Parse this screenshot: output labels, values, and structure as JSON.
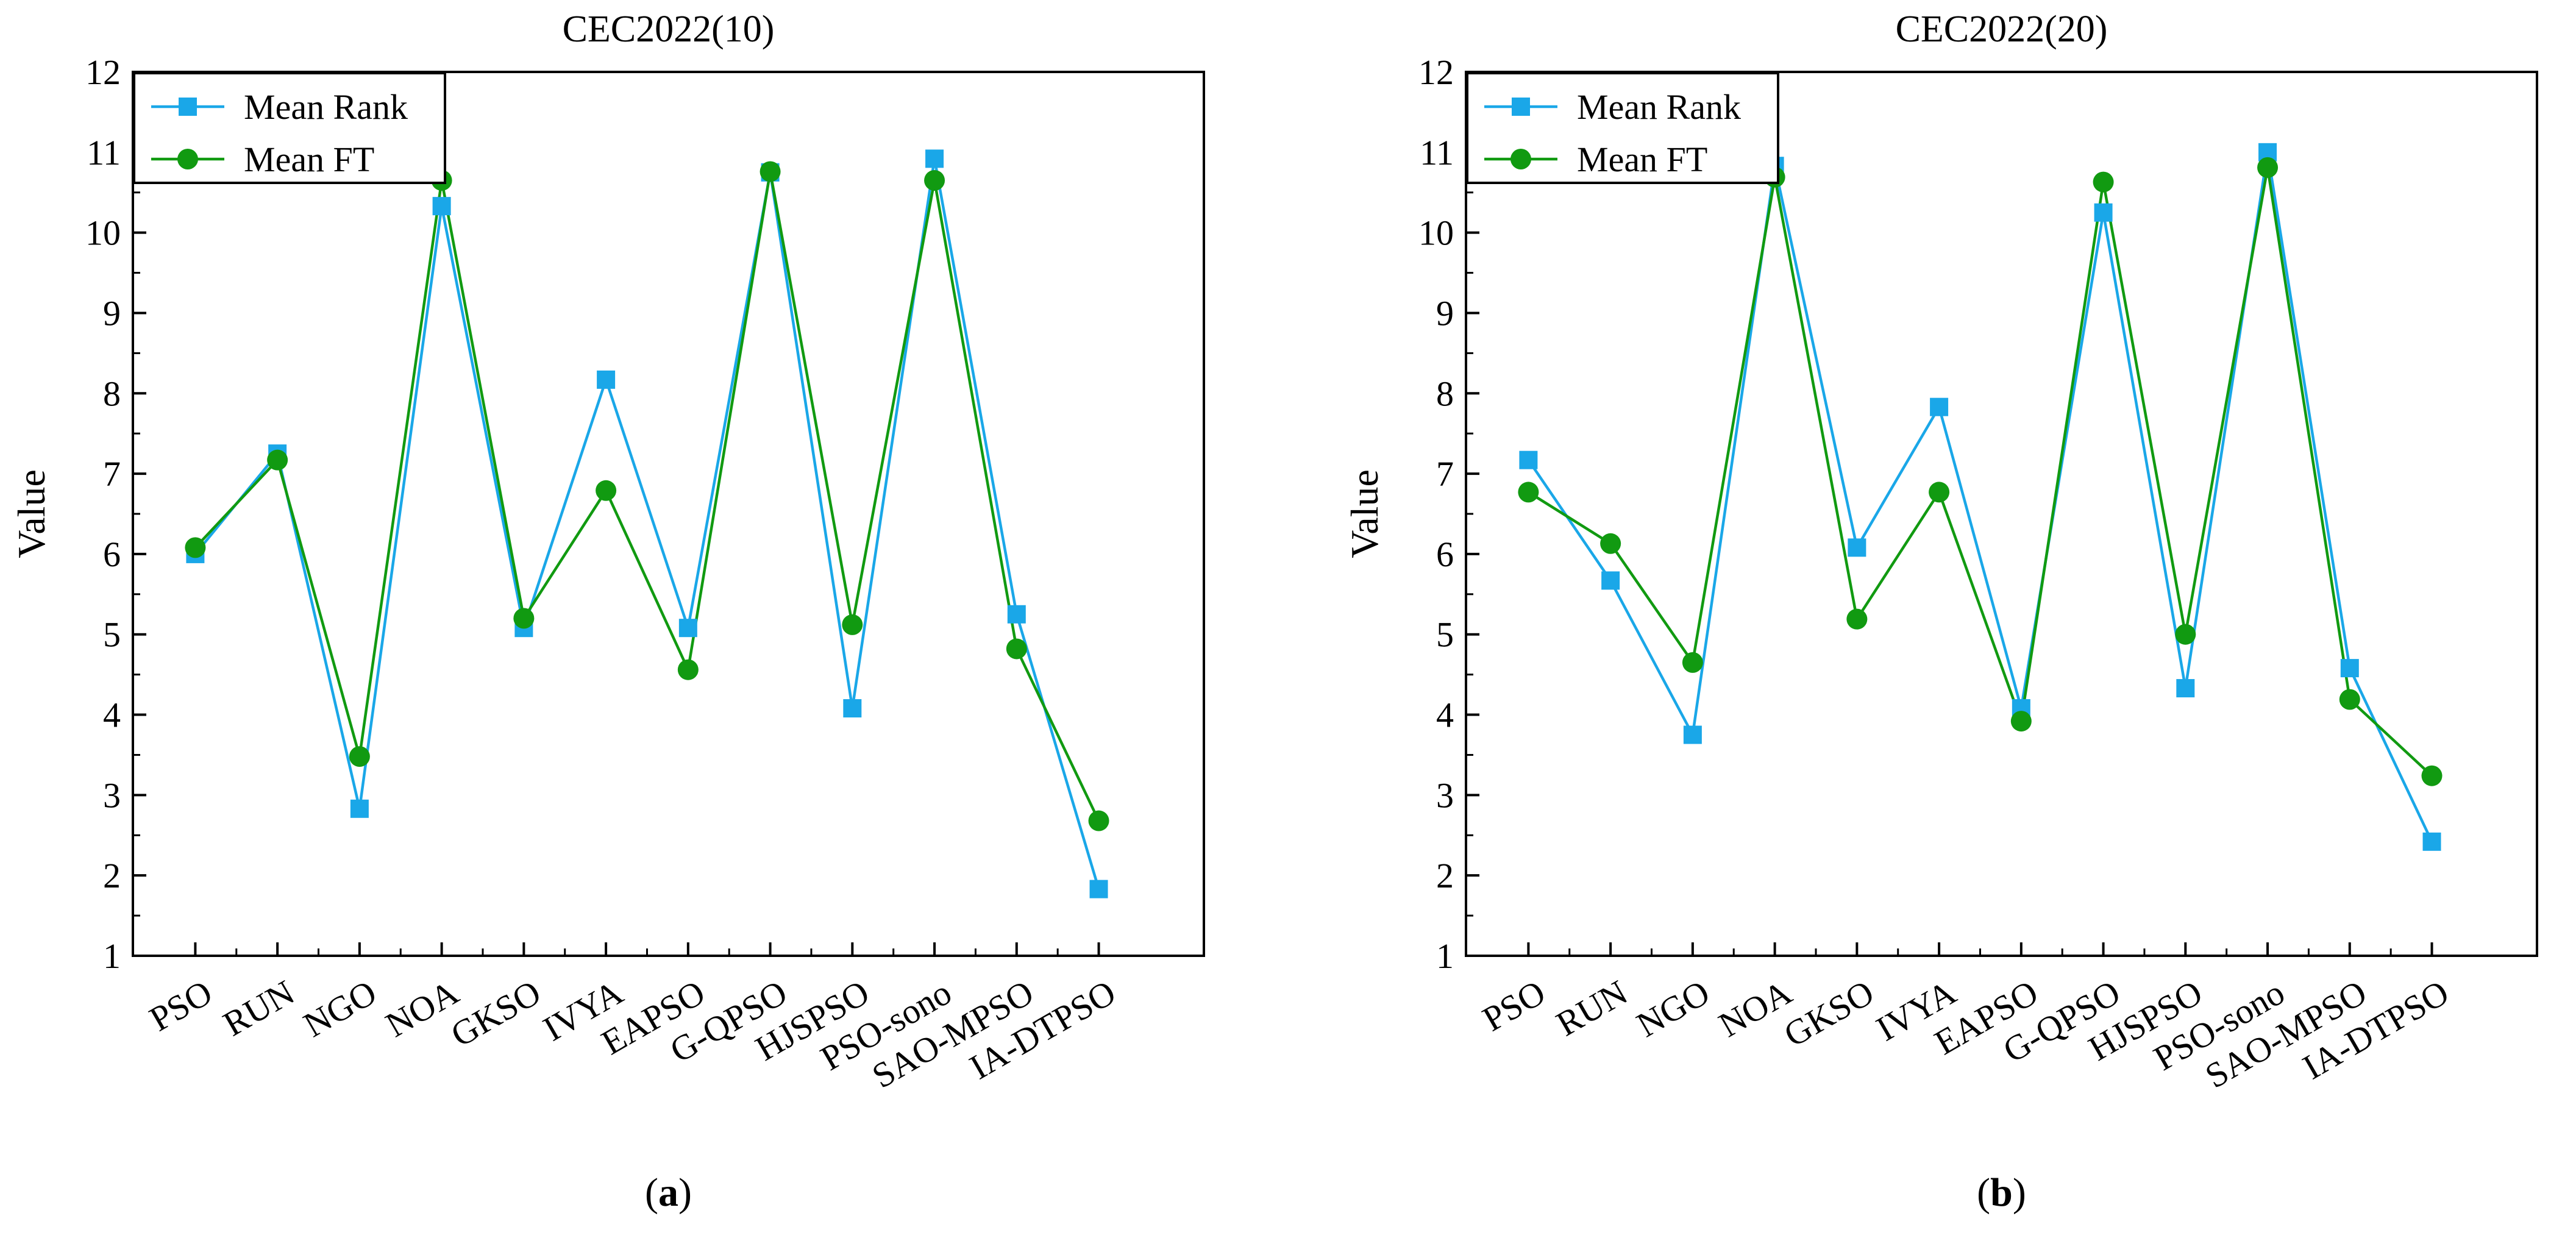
{
  "chart_data": [
    {
      "type": "line",
      "title": "CEC2022(10)",
      "panel_label": "a",
      "ylabel": "Value",
      "xlabel": "",
      "ylim": [
        1,
        12
      ],
      "yticks": [
        1,
        2,
        3,
        4,
        5,
        6,
        7,
        8,
        9,
        10,
        11,
        12
      ],
      "grid": false,
      "legend": "top-left",
      "categories": [
        "PSO",
        "RUN",
        "NGO",
        "NOA",
        "GKSO",
        "IVYA",
        "EAPSO",
        "G-QPSO",
        "HJSPSO",
        "PSO-sono",
        "SAO-MPSO",
        "IA-DTPSO"
      ],
      "series": [
        {
          "name": "Mean Rank",
          "marker": "square",
          "color": "#1aa7e8",
          "values": [
            6.0,
            7.25,
            2.83,
            10.33,
            5.08,
            8.17,
            5.08,
            10.75,
            4.08,
            10.92,
            5.25,
            1.83
          ]
        },
        {
          "name": "Mean FT",
          "marker": "circle",
          "color": "#119a11",
          "values": [
            6.08,
            7.17,
            3.48,
            10.65,
            5.2,
            6.79,
            4.56,
            10.76,
            5.12,
            10.65,
            4.82,
            2.68
          ]
        }
      ]
    },
    {
      "type": "line",
      "title": "CEC2022(20)",
      "panel_label": "b",
      "ylabel": "Value",
      "xlabel": "",
      "ylim": [
        1,
        12
      ],
      "yticks": [
        1,
        2,
        3,
        4,
        5,
        6,
        7,
        8,
        9,
        10,
        11,
        12
      ],
      "grid": false,
      "legend": "top-left",
      "categories": [
        "PSO",
        "RUN",
        "NGO",
        "NOA",
        "GKSO",
        "IVYA",
        "EAPSO",
        "G-QPSO",
        "HJSPSO",
        "PSO-sono",
        "SAO-MPSO",
        "IA-DTPSO"
      ],
      "series": [
        {
          "name": "Mean Rank",
          "marker": "square",
          "color": "#1aa7e8",
          "values": [
            7.17,
            5.67,
            3.75,
            10.83,
            6.08,
            7.83,
            4.08,
            10.25,
            4.33,
            11.0,
            4.58,
            2.42
          ]
        },
        {
          "name": "Mean FT",
          "marker": "circle",
          "color": "#119a11",
          "values": [
            6.77,
            6.13,
            4.65,
            10.69,
            5.19,
            6.77,
            3.92,
            10.63,
            5.0,
            10.81,
            4.19,
            3.24
          ]
        }
      ]
    }
  ]
}
